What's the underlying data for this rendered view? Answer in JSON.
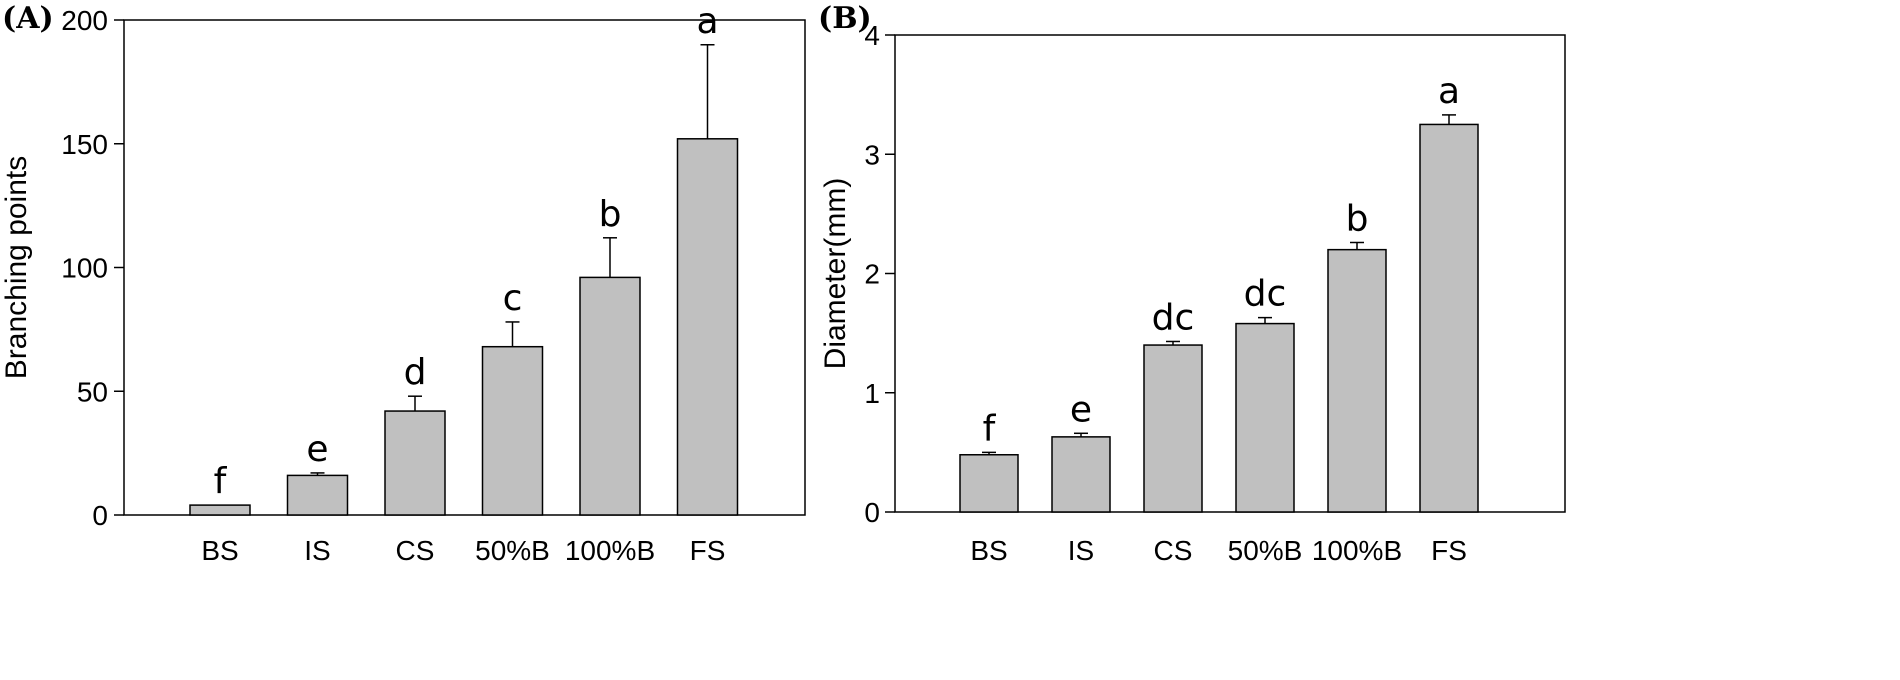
{
  "chart_data": [
    {
      "type": "bar",
      "panel_label": "(A)",
      "categories": [
        "BS",
        "IS",
        "CS",
        "50%B",
        "100%B",
        "FS"
      ],
      "values": [
        4,
        16,
        42,
        68,
        96,
        152
      ],
      "errors": [
        0,
        1,
        6,
        10,
        16,
        38
      ],
      "significance": [
        "f",
        "e",
        "d",
        "c",
        "b",
        "a"
      ],
      "ylabel": "Branching points",
      "xlabel": "",
      "ylim": [
        0,
        200
      ],
      "yticks": [
        0,
        50,
        100,
        150,
        200
      ],
      "bar_color": "#c0c0c0"
    },
    {
      "type": "bar",
      "panel_label": "(B)",
      "categories": [
        "BS",
        "IS",
        "CS",
        "50%B",
        "100%B",
        "FS"
      ],
      "values": [
        0.48,
        0.63,
        1.4,
        1.58,
        2.2,
        3.25
      ],
      "errors": [
        0.02,
        0.03,
        0.03,
        0.05,
        0.06,
        0.08
      ],
      "significance": [
        "f",
        "e",
        "dc",
        "dc",
        "b",
        "a"
      ],
      "ylabel": "Diameter(mm)",
      "xlabel": "",
      "ylim": [
        0,
        4
      ],
      "yticks": [
        0,
        1,
        2,
        3,
        4
      ],
      "bar_color": "#c0c0c0"
    }
  ]
}
